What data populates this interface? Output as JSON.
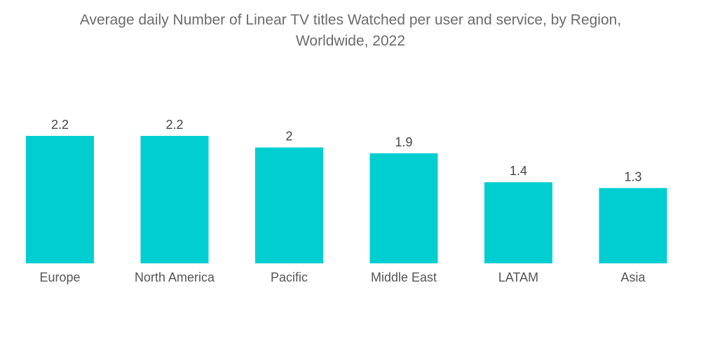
{
  "chart_data": {
    "type": "bar",
    "title": "Average daily Number of Linear TV titles Watched per user and service, by Region, Worldwide, 2022",
    "title_line1": "Average daily Number of Linear TV titles Watched per user and service, by Region,",
    "title_line2": "Worldwide, 2022",
    "categories": [
      "Europe",
      "North America",
      "Pacific",
      "Middle East",
      "LATAM",
      "Asia"
    ],
    "values": [
      2.2,
      2.2,
      2,
      1.9,
      1.4,
      1.3
    ],
    "value_labels": [
      "2.2",
      "2.2",
      "2",
      "1.9",
      "1.4",
      "1.3"
    ],
    "xlabel": "",
    "ylabel": "",
    "ylim": [
      0,
      2.2
    ],
    "grid": false,
    "legend": "none",
    "bar_color": "#00ced1"
  }
}
